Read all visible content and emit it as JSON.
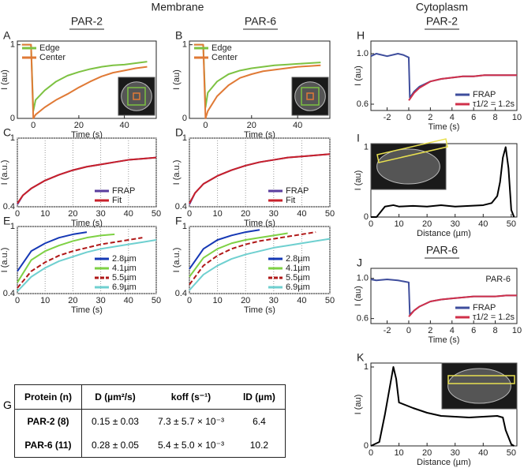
{
  "headers": {
    "membrane": "Membrane",
    "cytoplasm": "Cytoplasm",
    "membrane_par2": "PAR-2",
    "membrane_par6": "PAR-6",
    "cyto_par2": "PAR-2",
    "cyto_par6": "PAR-6"
  },
  "chart_data": [
    {
      "type": "line",
      "label": "A",
      "xlabel": "Time (s)",
      "ylabel": "I (au)",
      "xlim": [
        -7,
        54
      ],
      "xticks": [
        0,
        20,
        40
      ],
      "ylim": [
        0,
        1.05
      ],
      "yticks": [
        0,
        1
      ],
      "grid": false,
      "legend": "upper left",
      "x": [
        -5,
        -2,
        -1,
        0,
        1,
        5,
        10,
        15,
        20,
        25,
        30,
        35,
        40,
        45,
        50
      ],
      "series": [
        {
          "name": "Edge",
          "color": "#7dc242",
          "values": [
            1,
            1,
            1,
            0.1,
            0.25,
            0.38,
            0.5,
            0.58,
            0.63,
            0.67,
            0.7,
            0.72,
            0.73,
            0.75,
            0.77
          ]
        },
        {
          "name": "Center",
          "color": "#e07a36",
          "values": [
            1,
            1,
            1,
            0,
            0.05,
            0.15,
            0.25,
            0.33,
            0.42,
            0.5,
            0.57,
            0.62,
            0.65,
            0.68,
            0.7
          ]
        }
      ]
    },
    {
      "type": "line",
      "label": "B",
      "xlabel": "Time (s)",
      "ylabel": "I (au)",
      "xlim": [
        -7,
        54
      ],
      "xticks": [
        0,
        20,
        40
      ],
      "ylim": [
        0,
        1.05
      ],
      "yticks": [
        0,
        1
      ],
      "grid": false,
      "legend": "upper left",
      "x": [
        -5,
        -2,
        -1,
        0,
        1,
        5,
        10,
        15,
        20,
        25,
        30,
        35,
        40,
        45,
        50
      ],
      "series": [
        {
          "name": "Edge",
          "color": "#7dc242",
          "values": [
            1,
            1,
            1,
            0.15,
            0.35,
            0.5,
            0.6,
            0.65,
            0.68,
            0.7,
            0.72,
            0.73,
            0.74,
            0.75,
            0.76
          ]
        },
        {
          "name": "Center",
          "color": "#e07a36",
          "values": [
            1,
            1,
            1,
            0,
            0.1,
            0.3,
            0.45,
            0.55,
            0.6,
            0.64,
            0.66,
            0.68,
            0.7,
            0.71,
            0.72
          ]
        }
      ]
    },
    {
      "type": "line",
      "label": "C",
      "xlabel": "Time (s)",
      "ylabel": "I (a.u.)",
      "xlim": [
        0,
        50
      ],
      "xticks": [
        0,
        10,
        20,
        30,
        40,
        50
      ],
      "ylim": [
        0.4,
        1
      ],
      "yticks": [
        0.4,
        1
      ],
      "grid": true,
      "legend": "lower right",
      "x": [
        0,
        2,
        5,
        10,
        15,
        20,
        25,
        30,
        35,
        40,
        45,
        50
      ],
      "series": [
        {
          "name": "FRAP",
          "color": "#5a3d9e",
          "values": [
            0.42,
            0.5,
            0.56,
            0.63,
            0.68,
            0.72,
            0.75,
            0.77,
            0.79,
            0.81,
            0.82,
            0.83
          ]
        },
        {
          "name": "Fit",
          "color": "#c8202a",
          "values": [
            0.43,
            0.5,
            0.56,
            0.63,
            0.68,
            0.72,
            0.75,
            0.77,
            0.79,
            0.81,
            0.82,
            0.83
          ]
        }
      ]
    },
    {
      "type": "line",
      "label": "D",
      "xlabel": "Time (s)",
      "ylabel": "I (a.u.)",
      "xlim": [
        0,
        50
      ],
      "xticks": [
        0,
        10,
        20,
        30,
        40,
        50
      ],
      "ylim": [
        0.4,
        1
      ],
      "yticks": [
        0.4,
        1
      ],
      "grid": true,
      "legend": "lower right",
      "x": [
        0,
        2,
        5,
        10,
        15,
        20,
        25,
        30,
        35,
        40,
        45,
        50
      ],
      "series": [
        {
          "name": "FRAP",
          "color": "#5a3d9e",
          "values": [
            0.42,
            0.52,
            0.6,
            0.67,
            0.72,
            0.76,
            0.79,
            0.81,
            0.83,
            0.84,
            0.85,
            0.86
          ]
        },
        {
          "name": "Fit",
          "color": "#c8202a",
          "values": [
            0.43,
            0.52,
            0.6,
            0.67,
            0.72,
            0.76,
            0.79,
            0.81,
            0.83,
            0.84,
            0.85,
            0.86
          ]
        }
      ]
    },
    {
      "type": "line",
      "label": "E",
      "xlabel": "Time (s)",
      "ylabel": "I (a.u.)",
      "xlim": [
        0,
        50
      ],
      "xticks": [
        0,
        10,
        20,
        30,
        40,
        50
      ],
      "ylim": [
        0.4,
        1
      ],
      "yticks": [
        0.4,
        1
      ],
      "grid": true,
      "legend": "lower right",
      "x": [
        0,
        5,
        10,
        15,
        20,
        25,
        30,
        35,
        40,
        45,
        50
      ],
      "series": [
        {
          "name": "2.8µm",
          "color": "#1538b5",
          "values": [
            0.6,
            0.78,
            0.85,
            0.9,
            0.93,
            0.95,
            null,
            null,
            null,
            null,
            null
          ]
        },
        {
          "name": "4.1µm",
          "color": "#7ed144",
          "values": [
            0.5,
            0.7,
            0.78,
            0.83,
            0.87,
            0.9,
            0.92,
            0.93,
            null,
            null,
            null
          ]
        },
        {
          "name": "5.5µm",
          "color": "#b01818",
          "dashed": true,
          "values": [
            0.45,
            0.6,
            0.68,
            0.74,
            0.78,
            0.81,
            0.84,
            0.86,
            0.88,
            0.9,
            null
          ]
        },
        {
          "name": "6.9µm",
          "color": "#6fd0d0",
          "values": [
            0.42,
            0.55,
            0.63,
            0.69,
            0.73,
            0.77,
            0.8,
            0.82,
            0.84,
            0.86,
            0.88
          ]
        }
      ]
    },
    {
      "type": "line",
      "label": "F",
      "xlabel": "Time (s)",
      "ylabel": "I (a.u.)",
      "xlim": [
        0,
        50
      ],
      "xticks": [
        0,
        10,
        20,
        30,
        40,
        50
      ],
      "ylim": [
        0.4,
        1
      ],
      "yticks": [
        0.4,
        1
      ],
      "grid": true,
      "legend": "lower right",
      "x": [
        0,
        5,
        10,
        15,
        20,
        25,
        30,
        35,
        40,
        45,
        50
      ],
      "series": [
        {
          "name": "2.8µm",
          "color": "#1538b5",
          "values": [
            0.62,
            0.8,
            0.88,
            0.92,
            0.95,
            0.97,
            null,
            null,
            null,
            null,
            null
          ]
        },
        {
          "name": "4.1µm",
          "color": "#7ed144",
          "values": [
            0.55,
            0.72,
            0.8,
            0.85,
            0.88,
            0.9,
            0.92,
            0.94,
            null,
            null,
            null
          ]
        },
        {
          "name": "5.5µm",
          "color": "#b01818",
          "dashed": true,
          "values": [
            0.48,
            0.65,
            0.74,
            0.8,
            0.84,
            0.87,
            0.89,
            0.91,
            0.93,
            0.95,
            null
          ]
        },
        {
          "name": "6.9µm",
          "color": "#6fd0d0",
          "values": [
            0.43,
            0.57,
            0.65,
            0.71,
            0.75,
            0.78,
            0.81,
            0.83,
            0.85,
            0.87,
            0.89
          ]
        }
      ]
    },
    {
      "type": "line",
      "label": "H",
      "xlabel": "Time (s)",
      "ylabel": "I (au)",
      "xlim": [
        -3.5,
        10
      ],
      "xticks": [
        -2,
        0,
        2,
        4,
        6,
        8,
        10
      ],
      "ylim": [
        0.55,
        1.1
      ],
      "yticks": [
        0.6,
        {
          "value": 1.0,
          "label": "1.0"
        }
      ],
      "grid": false,
      "legend": "lower right",
      "x": [
        -3.5,
        -3,
        -2,
        -1,
        -0.5,
        0,
        0.1,
        0.5,
        1,
        2,
        3,
        4,
        5,
        6,
        7,
        8,
        9,
        10
      ],
      "series": [
        {
          "name": "FRAP",
          "color": "#3e4d9c",
          "values": [
            0.98,
            1.0,
            0.98,
            1.0,
            0.99,
            0.97,
            0.65,
            0.7,
            0.74,
            0.78,
            0.8,
            0.81,
            0.82,
            0.82,
            0.83,
            0.83,
            0.83,
            0.83
          ]
        },
        {
          "name": "τ1/2 = 1.2s",
          "color": "#d0304a",
          "values": [
            null,
            null,
            null,
            null,
            null,
            0.63,
            0.64,
            0.69,
            0.73,
            0.78,
            0.8,
            0.81,
            0.82,
            0.82,
            0.83,
            0.83,
            0.83,
            0.83
          ]
        }
      ]
    },
    {
      "type": "line",
      "label": "I",
      "xlabel": "Distance (µm)",
      "ylabel": "I (au)",
      "xlim": [
        0,
        52
      ],
      "xticks": [
        0,
        10,
        20,
        30,
        40,
        50
      ],
      "ylim": [
        0,
        1.05
      ],
      "yticks": [
        0,
        1
      ],
      "grid": false,
      "x": [
        0,
        2,
        3,
        5,
        8,
        10,
        15,
        20,
        25,
        30,
        35,
        40,
        43,
        45,
        46,
        47,
        48,
        49,
        50,
        51
      ],
      "series": [
        {
          "color": "#000000",
          "values": [
            0,
            0,
            0.05,
            0.15,
            0.17,
            0.15,
            0.16,
            0.15,
            0.17,
            0.15,
            0.16,
            0.17,
            0.2,
            0.3,
            0.5,
            0.85,
            1.0,
            0.7,
            0.1,
            0
          ]
        }
      ]
    },
    {
      "type": "line",
      "label": "J",
      "xlabel": "Time (s)",
      "ylabel": "I (au)",
      "annotation": "PAR-6",
      "xlim": [
        -3.5,
        10
      ],
      "xticks": [
        -2,
        0,
        2,
        4,
        6,
        8,
        10
      ],
      "ylim": [
        0.55,
        1.1
      ],
      "yticks": [
        0.6,
        {
          "value": 1.0,
          "label": "1.0"
        }
      ],
      "grid": false,
      "legend": "lower right",
      "x": [
        -3.5,
        -3,
        -2,
        -1,
        -0.5,
        0,
        0.1,
        0.5,
        1,
        2,
        3,
        4,
        5,
        6,
        7,
        8,
        9,
        10
      ],
      "series": [
        {
          "name": "FRAP",
          "color": "#3e4d9c",
          "values": [
            0.99,
            0.98,
            0.99,
            0.98,
            0.97,
            0.96,
            0.64,
            0.68,
            0.72,
            0.77,
            0.79,
            0.8,
            0.81,
            0.82,
            0.82,
            0.82,
            0.83,
            0.83
          ]
        },
        {
          "name": "τ1/2 = 1.2s",
          "color": "#d0304a",
          "values": [
            null,
            null,
            null,
            null,
            null,
            0.62,
            0.63,
            0.68,
            0.72,
            0.77,
            0.79,
            0.8,
            0.81,
            0.82,
            0.82,
            0.82,
            0.83,
            0.83
          ]
        }
      ]
    },
    {
      "type": "line",
      "label": "K",
      "xlabel": "Distance (µm)",
      "ylabel": "I (au)",
      "xlim": [
        0,
        52
      ],
      "xticks": [
        0,
        10,
        20,
        30,
        40,
        50
      ],
      "ylim": [
        0,
        1.05
      ],
      "yticks": [
        0,
        1
      ],
      "grid": false,
      "x": [
        0,
        3,
        5,
        6,
        7,
        8,
        9,
        10,
        15,
        20,
        25,
        30,
        35,
        40,
        45,
        47,
        48,
        50,
        51
      ],
      "series": [
        {
          "color": "#000000",
          "values": [
            0,
            0.05,
            0.4,
            0.6,
            0.8,
            1.0,
            0.85,
            0.55,
            0.48,
            0.42,
            0.38,
            0.37,
            0.36,
            0.37,
            0.38,
            0.36,
            0.2,
            0.02,
            0
          ]
        }
      ]
    }
  ],
  "table": {
    "label": "G",
    "header": [
      "Protein (n)",
      "D (µm²/s)",
      "koff (s⁻¹)",
      "lD (µm)"
    ],
    "rows": [
      [
        "PAR-2 (8)",
        "0.15 ± 0.03",
        "7.3 ± 5.7 × 10⁻³",
        "6.4"
      ],
      [
        "PAR-6 (11)",
        "0.28 ± 0.05",
        "5.4 ± 5.0 × 10⁻³",
        "10.2"
      ]
    ]
  }
}
